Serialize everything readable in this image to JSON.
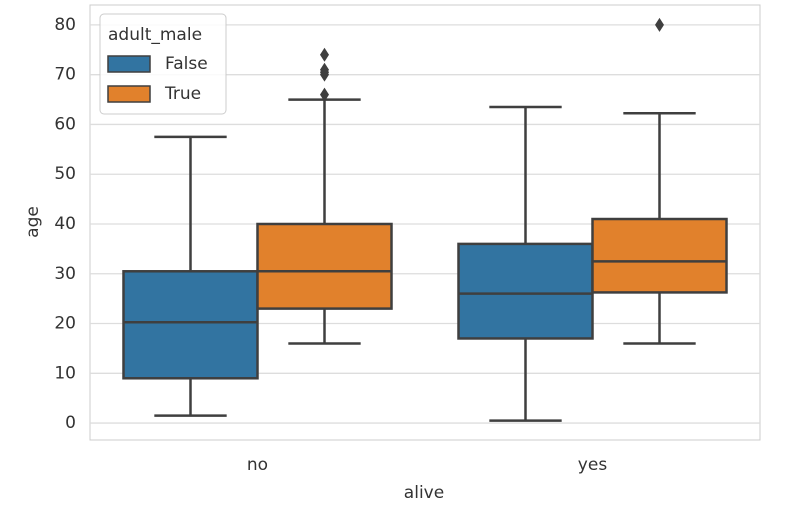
{
  "chart_data": {
    "type": "box",
    "x_label": "alive",
    "y_label": "age",
    "categories": [
      "no",
      "yes"
    ],
    "legend_title": "adult_male",
    "legend": "upper left",
    "grid": true,
    "ylim": [
      -3.4,
      84
    ],
    "yticks": [
      0,
      10,
      20,
      30,
      40,
      50,
      60,
      70,
      80
    ],
    "series": [
      {
        "name": "False",
        "color": "#3274a1",
        "min": [
          1.5,
          0.5
        ],
        "q1": [
          9,
          17
        ],
        "median": [
          20.25,
          26
        ],
        "q3": [
          30.5,
          36
        ],
        "max": [
          57.5,
          63.5
        ],
        "outliers": [
          [],
          []
        ]
      },
      {
        "name": "True",
        "color": "#e1812c",
        "min": [
          16,
          16
        ],
        "q1": [
          23,
          26.25
        ],
        "median": [
          30.5,
          32.5
        ],
        "q3": [
          40,
          41
        ],
        "max": [
          65,
          62.25
        ],
        "outliers": [
          [
            66,
            70,
            70.5,
            71,
            74
          ],
          [
            80
          ]
        ]
      }
    ]
  }
}
